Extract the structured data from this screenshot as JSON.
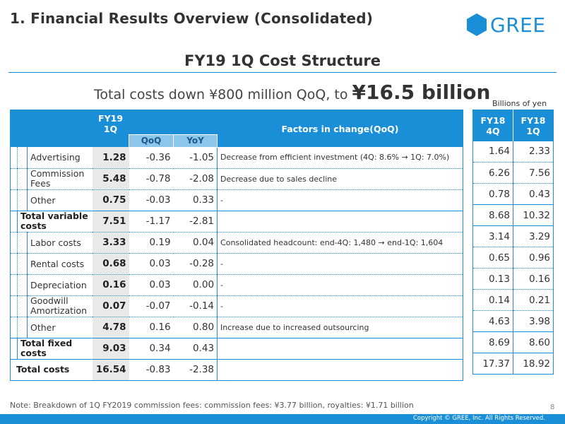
{
  "section_title": "1. Financial Results Overview (Consolidated)",
  "logo_text": "GREE",
  "slide_title": "FY19 1Q Cost Structure",
  "headline": {
    "prefix": "Total costs down ¥800 million QoQ, to",
    "highlight": "¥16.5 billion"
  },
  "unit_label": "Billions of yen",
  "table": {
    "col_current": "FY19\n1Q",
    "col_qoq": "QoQ",
    "col_yoy": "YoY",
    "col_factors": "Factors in change(QoQ)",
    "rows": [
      {
        "label": "Advertising",
        "value": "1.28",
        "qoq": "-0.36",
        "yoy": "-1.05",
        "factor": "Decrease from efficient investment (4Q: 8.6% → 1Q: 7.0%)"
      },
      {
        "label": "Commission Fees",
        "value": "5.48",
        "qoq": "-0.78",
        "yoy": "-2.08",
        "factor": "Decrease due to sales decline"
      },
      {
        "label": "Other",
        "value": "0.75",
        "qoq": "-0.03",
        "yoy": "0.33",
        "factor": "-"
      },
      {
        "label": "Total variable costs",
        "value": "7.51",
        "qoq": "-1.17",
        "yoy": "-2.81",
        "factor": ""
      },
      {
        "label": "Labor costs",
        "value": "3.33",
        "qoq": "0.19",
        "yoy": "0.04",
        "factor": "Consolidated headcount: end-4Q: 1,480 → end-1Q: 1,604"
      },
      {
        "label": "Rental costs",
        "value": "0.68",
        "qoq": "0.03",
        "yoy": "-0.28",
        "factor": "-"
      },
      {
        "label": "Depreciation",
        "value": "0.16",
        "qoq": "0.03",
        "yoy": "0.00",
        "factor": "-"
      },
      {
        "label": "Goodwill Amortization",
        "value": "0.07",
        "qoq": "-0.07",
        "yoy": "-0.14",
        "factor": "-"
      },
      {
        "label": "Other",
        "value": "4.78",
        "qoq": "0.16",
        "yoy": "0.80",
        "factor": "Increase due to increased outsourcing"
      },
      {
        "label": "Total fixed costs",
        "value": "9.03",
        "qoq": "0.34",
        "yoy": "0.43",
        "factor": ""
      },
      {
        "label": "Total costs",
        "value": "16.54",
        "qoq": "-0.83",
        "yoy": "-2.38",
        "factor": ""
      }
    ]
  },
  "side_table": {
    "col_a": "FY18\n4Q",
    "col_b": "FY18\n1Q",
    "rows": [
      {
        "a": "1.64",
        "b": "2.33"
      },
      {
        "a": "6.26",
        "b": "7.56"
      },
      {
        "a": "0.78",
        "b": "0.43"
      },
      {
        "a": "8.68",
        "b": "10.32"
      },
      {
        "a": "3.14",
        "b": "3.29"
      },
      {
        "a": "0.65",
        "b": "0.96"
      },
      {
        "a": "0.13",
        "b": "0.16"
      },
      {
        "a": "0.14",
        "b": "0.21"
      },
      {
        "a": "4.63",
        "b": "3.98"
      },
      {
        "a": "8.69",
        "b": "8.60"
      },
      {
        "a": "17.37",
        "b": "18.92"
      }
    ]
  },
  "note": "Note: Breakdown of 1Q FY2019 commission fees: commission fees: ¥3.77 billion, royalties: ¥1.71 billion",
  "page_number": "8",
  "copyright": "Copyright © GREE, Inc. All Rights Reserved.",
  "colors": {
    "brand_blue": "#1a8fd8",
    "sub_header": "#8cc6ea",
    "value_cell": "#e9e9e9"
  }
}
